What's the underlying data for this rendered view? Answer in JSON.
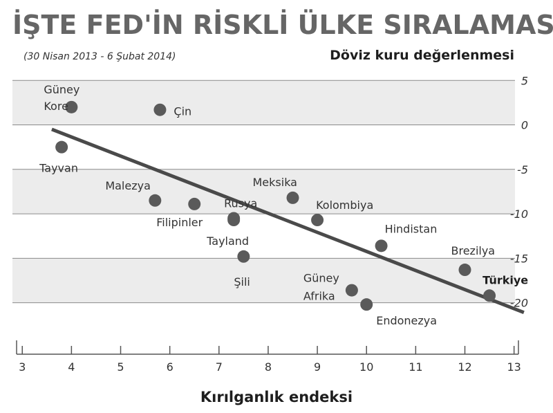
{
  "chart_data": {
    "type": "scatter",
    "title": "İŞTE FED'İN RİSKLİ ÜLKE SIRALAMASI",
    "subtitle": "(30 Nisan 2013 - 6 Şubat 2014)",
    "xlabel": "Kırılganlık endeksi",
    "ylabel": "Döviz kuru değerlenmesi",
    "xlim": [
      2.8,
      13.3
    ],
    "ylim": [
      -24,
      6.5
    ],
    "x_ticks": [
      "3",
      "4",
      "5",
      "6",
      "7",
      "8",
      "9",
      "10",
      "11",
      "12",
      "13"
    ],
    "y_ticks": [
      "5",
      "0",
      "-5",
      "-10",
      "-15",
      "-20"
    ],
    "grid": "horizontal bands",
    "points": [
      {
        "label": [
          "Güney",
          "Kore"
        ],
        "x": 4.0,
        "y": 2.0
      },
      {
        "label": [
          "Çin"
        ],
        "x": 5.8,
        "y": 1.7
      },
      {
        "label": [
          "Tayvan"
        ],
        "x": 3.8,
        "y": -2.5
      },
      {
        "label": [
          "Malezya"
        ],
        "x": 5.7,
        "y": -8.5
      },
      {
        "label": [
          "Filipinler"
        ],
        "x": 6.5,
        "y": -8.9
      },
      {
        "label": [
          "Rusya"
        ],
        "x": 7.3,
        "y": -10.5
      },
      {
        "label": [
          "Tayland"
        ],
        "x": 7.3,
        "y": -10.7
      },
      {
        "label": [
          "Meksika"
        ],
        "x": 8.5,
        "y": -8.2
      },
      {
        "label": [
          "Kolombiya"
        ],
        "x": 9.0,
        "y": -10.7
      },
      {
        "label": [
          "Şili"
        ],
        "x": 7.5,
        "y": -14.8
      },
      {
        "label": [
          "Hindistan"
        ],
        "x": 10.3,
        "y": -13.6
      },
      {
        "label": [
          "Brezilya"
        ],
        "x": 12.0,
        "y": -16.3
      },
      {
        "label": [
          "Türkiye"
        ],
        "x": 12.5,
        "y": -19.2,
        "highlight": true
      },
      {
        "label": [
          "Güney",
          "Afrika"
        ],
        "x": 9.7,
        "y": -18.6
      },
      {
        "label": [
          "Endonezya"
        ],
        "x": 10.0,
        "y": -20.2
      }
    ],
    "trendline": {
      "x": [
        3.6,
        13.2
      ],
      "y": [
        -0.5,
        -21.1
      ]
    },
    "colors": {
      "points": "#5a5a5a",
      "trendline": "#4a4a4a",
      "band": "#ececec",
      "gridline": "#8a8a8a",
      "title": "#666666"
    }
  }
}
